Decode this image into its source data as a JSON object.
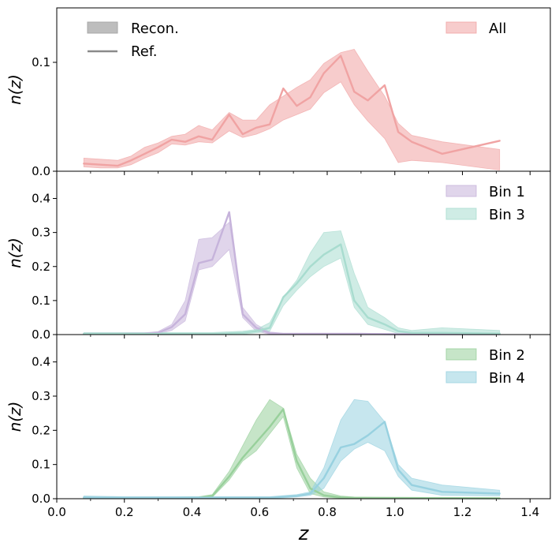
{
  "chart_data": {
    "type": "line",
    "xlabel": "z",
    "ylabel": "n(z)",
    "xlim": [
      0.0,
      1.46
    ],
    "x_ticks": [
      0.0,
      0.2,
      0.4,
      0.6,
      0.8,
      1.0,
      1.2,
      1.4
    ],
    "x_tick_labels": [
      "0.0",
      "0.2",
      "0.4",
      "0.6",
      "0.8",
      "1.0",
      "1.2",
      "1.4"
    ],
    "legend_style": {
      "band_label": "Recon.",
      "line_label": "Ref.",
      "band_color": "#bdbdbd",
      "line_color": "#8a8a8a"
    },
    "panels": [
      {
        "id": "top",
        "ylim": [
          0.0,
          0.15
        ],
        "y_ticks": [
          0.0,
          0.1
        ],
        "y_tick_labels": [
          "0.0",
          "0.1"
        ],
        "show_style_legend": true,
        "series": [
          {
            "name": "All",
            "color": "#f0a3a3",
            "x": [
              0.08,
              0.13,
              0.18,
              0.22,
              0.26,
              0.3,
              0.34,
              0.38,
              0.42,
              0.46,
              0.51,
              0.55,
              0.59,
              0.63,
              0.67,
              0.71,
              0.75,
              0.79,
              0.84,
              0.88,
              0.92,
              0.97,
              1.01,
              1.05,
              1.14,
              1.31
            ],
            "ref": [
              0.007,
              0.006,
              0.005,
              0.01,
              0.016,
              0.022,
              0.029,
              0.027,
              0.032,
              0.029,
              0.052,
              0.034,
              0.04,
              0.043,
              0.076,
              0.06,
              0.068,
              0.09,
              0.106,
              0.073,
              0.065,
              0.079,
              0.036,
              0.027,
              0.016,
              0.028
            ],
            "lower": [
              0.004,
              0.003,
              0.003,
              0.006,
              0.012,
              0.017,
              0.025,
              0.024,
              0.027,
              0.026,
              0.037,
              0.031,
              0.034,
              0.039,
              0.047,
              0.052,
              0.057,
              0.072,
              0.082,
              0.061,
              0.046,
              0.03,
              0.008,
              0.01,
              0.008,
              0.001
            ],
            "upper": [
              0.012,
              0.011,
              0.01,
              0.014,
              0.022,
              0.026,
              0.032,
              0.034,
              0.042,
              0.038,
              0.054,
              0.047,
              0.047,
              0.061,
              0.069,
              0.077,
              0.084,
              0.099,
              0.109,
              0.112,
              0.092,
              0.069,
              0.044,
              0.033,
              0.027,
              0.02
            ]
          }
        ]
      },
      {
        "id": "middle",
        "ylim": [
          0.0,
          0.48
        ],
        "y_ticks": [
          0.0,
          0.1,
          0.2,
          0.3,
          0.4
        ],
        "y_tick_labels": [
          "0.0",
          "0.1",
          "0.2",
          "0.3",
          "0.4"
        ],
        "show_style_legend": false,
        "series": [
          {
            "name": "Bin 1",
            "color": "#c6b3db",
            "x": [
              0.08,
              0.18,
              0.26,
              0.3,
              0.34,
              0.38,
              0.42,
              0.46,
              0.51,
              0.55,
              0.59,
              0.63,
              0.67,
              0.8,
              0.9,
              1.0,
              1.31
            ],
            "ref": [
              0.002,
              0.002,
              0.003,
              0.005,
              0.022,
              0.06,
              0.21,
              0.22,
              0.36,
              0.06,
              0.02,
              0.004,
              0.002,
              0.002,
              0.002,
              0.001,
              0.001
            ],
            "lower": [
              0.0,
              0.0,
              0.001,
              0.002,
              0.012,
              0.04,
              0.19,
              0.2,
              0.25,
              0.05,
              0.01,
              0.001,
              0.0,
              0.0,
              0.0,
              0.0,
              0.0
            ],
            "upper": [
              0.004,
              0.004,
              0.005,
              0.009,
              0.03,
              0.1,
              0.28,
              0.285,
              0.33,
              0.08,
              0.03,
              0.008,
              0.004,
              0.004,
              0.004,
              0.003,
              0.003
            ]
          },
          {
            "name": "Bin 3",
            "color": "#a8dccf",
            "x": [
              0.08,
              0.3,
              0.46,
              0.55,
              0.59,
              0.63,
              0.67,
              0.71,
              0.75,
              0.79,
              0.84,
              0.88,
              0.92,
              0.97,
              1.01,
              1.05,
              1.14,
              1.31
            ],
            "ref": [
              0.002,
              0.002,
              0.002,
              0.005,
              0.01,
              0.02,
              0.11,
              0.15,
              0.2,
              0.235,
              0.265,
              0.1,
              0.05,
              0.03,
              0.01,
              0.005,
              0.005,
              0.003
            ],
            "lower": [
              0.0,
              0.0,
              0.0,
              0.001,
              0.005,
              0.01,
              0.085,
              0.13,
              0.17,
              0.2,
              0.225,
              0.08,
              0.03,
              0.015,
              0.003,
              0.0,
              0.0,
              0.0
            ],
            "upper": [
              0.006,
              0.006,
              0.006,
              0.01,
              0.015,
              0.035,
              0.11,
              0.16,
              0.24,
              0.3,
              0.305,
              0.18,
              0.08,
              0.05,
              0.02,
              0.012,
              0.02,
              0.012
            ]
          }
        ]
      },
      {
        "id": "bottom",
        "ylim": [
          0.0,
          0.48
        ],
        "y_ticks": [
          0.0,
          0.1,
          0.2,
          0.3,
          0.4
        ],
        "y_tick_labels": [
          "0.0",
          "0.1",
          "0.2",
          "0.3",
          "0.4"
        ],
        "show_style_legend": false,
        "series": [
          {
            "name": "Bin 2",
            "color": "#98d09b",
            "x": [
              0.08,
              0.3,
              0.42,
              0.46,
              0.51,
              0.55,
              0.59,
              0.63,
              0.67,
              0.71,
              0.75,
              0.79,
              0.84,
              0.88,
              1.0,
              1.31
            ],
            "ref": [
              0.002,
              0.002,
              0.003,
              0.008,
              0.065,
              0.12,
              0.165,
              0.21,
              0.262,
              0.11,
              0.03,
              0.01,
              0.004,
              0.002,
              0.002,
              0.001
            ],
            "lower": [
              0.0,
              0.0,
              0.001,
              0.004,
              0.055,
              0.11,
              0.14,
              0.19,
              0.24,
              0.09,
              0.015,
              0.005,
              0.001,
              0.0,
              0.0,
              0.0
            ],
            "upper": [
              0.004,
              0.004,
              0.006,
              0.012,
              0.08,
              0.155,
              0.23,
              0.29,
              0.265,
              0.13,
              0.06,
              0.02,
              0.008,
              0.005,
              0.004,
              0.003
            ]
          },
          {
            "name": "Bin 4",
            "color": "#98d1e0",
            "x": [
              0.08,
              0.2,
              0.3,
              0.46,
              0.63,
              0.71,
              0.75,
              0.79,
              0.84,
              0.88,
              0.92,
              0.97,
              1.01,
              1.05,
              1.14,
              1.31
            ],
            "ref": [
              0.004,
              0.003,
              0.003,
              0.003,
              0.003,
              0.008,
              0.015,
              0.06,
              0.15,
              0.16,
              0.185,
              0.225,
              0.085,
              0.04,
              0.02,
              0.015
            ],
            "lower": [
              0.0,
              0.0,
              0.0,
              0.0,
              0.0,
              0.005,
              0.01,
              0.03,
              0.11,
              0.145,
              0.165,
              0.14,
              0.065,
              0.025,
              0.01,
              0.008
            ],
            "upper": [
              0.008,
              0.006,
              0.006,
              0.006,
              0.006,
              0.012,
              0.02,
              0.09,
              0.23,
              0.29,
              0.285,
              0.225,
              0.1,
              0.06,
              0.04,
              0.025
            ]
          }
        ]
      }
    ]
  }
}
